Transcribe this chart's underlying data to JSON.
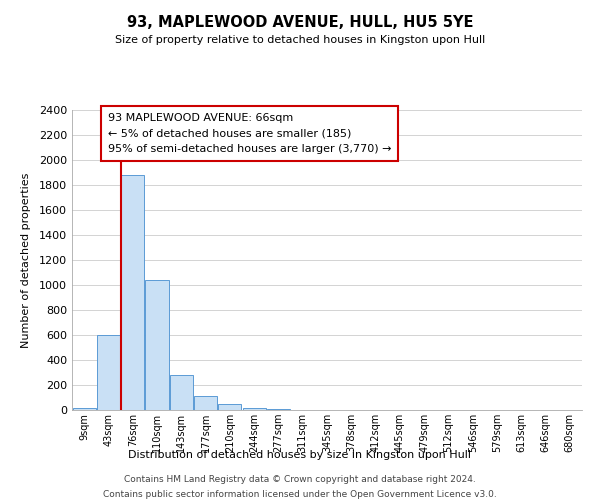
{
  "title": "93, MAPLEWOOD AVENUE, HULL, HU5 5YE",
  "subtitle": "Size of property relative to detached houses in Kingston upon Hull",
  "xlabel": "Distribution of detached houses by size in Kingston upon Hull",
  "ylabel": "Number of detached properties",
  "bar_labels": [
    "9sqm",
    "43sqm",
    "76sqm",
    "110sqm",
    "143sqm",
    "177sqm",
    "210sqm",
    "244sqm",
    "277sqm",
    "311sqm",
    "345sqm",
    "378sqm",
    "412sqm",
    "445sqm",
    "479sqm",
    "512sqm",
    "546sqm",
    "579sqm",
    "613sqm",
    "646sqm",
    "680sqm"
  ],
  "bar_heights": [
    20,
    600,
    1880,
    1040,
    280,
    115,
    50,
    20,
    5,
    0,
    0,
    0,
    0,
    0,
    0,
    0,
    0,
    0,
    0,
    0,
    0
  ],
  "bar_color": "#c9e0f5",
  "bar_edge_color": "#5b9bd5",
  "highlight_color": "#cc0000",
  "highlight_bar_index": 2,
  "ylim": [
    0,
    2400
  ],
  "yticks": [
    0,
    200,
    400,
    600,
    800,
    1000,
    1200,
    1400,
    1600,
    1800,
    2000,
    2200,
    2400
  ],
  "annotation_title": "93 MAPLEWOOD AVENUE: 66sqm",
  "annotation_line1": "← 5% of detached houses are smaller (185)",
  "annotation_line2": "95% of semi-detached houses are larger (3,770) →",
  "annotation_box_color": "#ffffff",
  "annotation_box_edge": "#cc0000",
  "footer_line1": "Contains HM Land Registry data © Crown copyright and database right 2024.",
  "footer_line2": "Contains public sector information licensed under the Open Government Licence v3.0.",
  "background_color": "#ffffff",
  "grid_color": "#cccccc"
}
